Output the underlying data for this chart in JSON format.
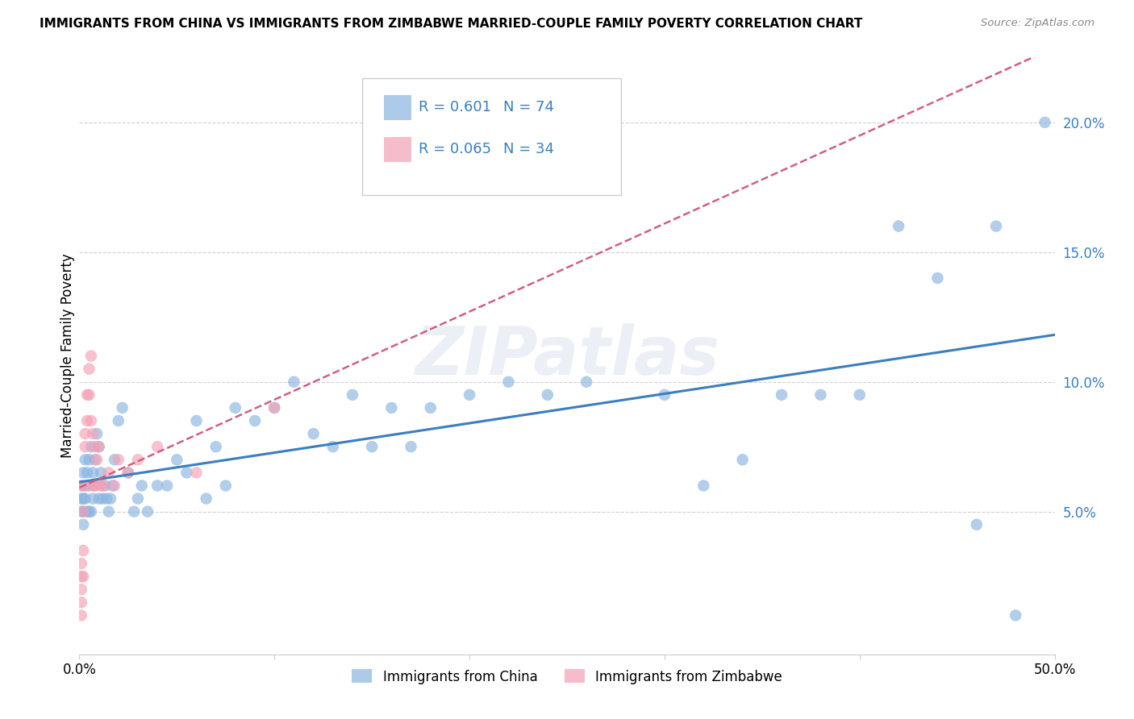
{
  "title": "IMMIGRANTS FROM CHINA VS IMMIGRANTS FROM ZIMBABWE MARRIED-COUPLE FAMILY POVERTY CORRELATION CHART",
  "source": "Source: ZipAtlas.com",
  "ylabel": "Married-Couple Family Poverty",
  "xlim": [
    0.0,
    0.5
  ],
  "ylim": [
    -0.005,
    0.225
  ],
  "china_color": "#8ab4e0",
  "zimbabwe_color": "#f4a0b5",
  "china_R": 0.601,
  "china_N": 74,
  "zimbabwe_R": 0.065,
  "zimbabwe_N": 34,
  "china_line_color": "#3a7fc1",
  "zimbabwe_line_color": "#d06080",
  "watermark": "ZIPatlas",
  "china_x": [
    0.001,
    0.001,
    0.001,
    0.002,
    0.002,
    0.002,
    0.002,
    0.003,
    0.003,
    0.003,
    0.004,
    0.004,
    0.005,
    0.005,
    0.005,
    0.006,
    0.006,
    0.007,
    0.007,
    0.008,
    0.008,
    0.009,
    0.01,
    0.01,
    0.011,
    0.012,
    0.013,
    0.014,
    0.015,
    0.016,
    0.017,
    0.018,
    0.02,
    0.022,
    0.025,
    0.028,
    0.03,
    0.032,
    0.035,
    0.04,
    0.045,
    0.05,
    0.055,
    0.06,
    0.065,
    0.07,
    0.075,
    0.08,
    0.09,
    0.1,
    0.11,
    0.12,
    0.13,
    0.14,
    0.15,
    0.16,
    0.17,
    0.18,
    0.2,
    0.22,
    0.24,
    0.26,
    0.3,
    0.32,
    0.34,
    0.36,
    0.38,
    0.4,
    0.42,
    0.44,
    0.46,
    0.47,
    0.48,
    0.495
  ],
  "china_y": [
    0.06,
    0.055,
    0.05,
    0.065,
    0.055,
    0.05,
    0.045,
    0.07,
    0.06,
    0.055,
    0.065,
    0.05,
    0.07,
    0.06,
    0.05,
    0.075,
    0.05,
    0.065,
    0.055,
    0.07,
    0.06,
    0.08,
    0.075,
    0.055,
    0.065,
    0.055,
    0.06,
    0.055,
    0.05,
    0.055,
    0.06,
    0.07,
    0.085,
    0.09,
    0.065,
    0.05,
    0.055,
    0.06,
    0.05,
    0.06,
    0.06,
    0.07,
    0.065,
    0.085,
    0.055,
    0.075,
    0.06,
    0.09,
    0.085,
    0.09,
    0.1,
    0.08,
    0.075,
    0.095,
    0.075,
    0.09,
    0.075,
    0.09,
    0.095,
    0.1,
    0.095,
    0.1,
    0.095,
    0.06,
    0.07,
    0.095,
    0.095,
    0.095,
    0.16,
    0.14,
    0.045,
    0.16,
    0.01,
    0.2
  ],
  "zimbabwe_x": [
    0.001,
    0.001,
    0.001,
    0.001,
    0.001,
    0.002,
    0.002,
    0.002,
    0.002,
    0.003,
    0.003,
    0.003,
    0.004,
    0.004,
    0.005,
    0.005,
    0.006,
    0.006,
    0.007,
    0.007,
    0.008,
    0.008,
    0.009,
    0.01,
    0.011,
    0.012,
    0.015,
    0.018,
    0.02,
    0.025,
    0.03,
    0.04,
    0.06,
    0.1
  ],
  "zimbabwe_y": [
    0.02,
    0.03,
    0.025,
    0.015,
    0.01,
    0.06,
    0.05,
    0.035,
    0.025,
    0.06,
    0.08,
    0.075,
    0.095,
    0.085,
    0.095,
    0.105,
    0.11,
    0.085,
    0.08,
    0.06,
    0.06,
    0.075,
    0.07,
    0.075,
    0.06,
    0.06,
    0.065,
    0.06,
    0.07,
    0.065,
    0.07,
    0.075,
    0.065,
    0.09
  ]
}
